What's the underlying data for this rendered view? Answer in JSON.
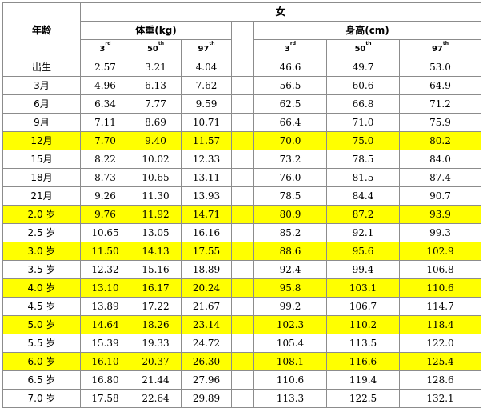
{
  "header": {
    "age_label": "年龄",
    "sex_label": "女",
    "weight_label": "体重(kg)",
    "height_label": "身高(cm)",
    "percentiles": [
      {
        "num": "3",
        "sup": "rd"
      },
      {
        "num": "50",
        "sup": "th"
      },
      {
        "num": "97",
        "sup": "th"
      }
    ]
  },
  "rows": [
    {
      "age": "出生",
      "w": [
        "2.57",
        "3.21",
        "4.04"
      ],
      "h": [
        "46.6",
        "49.7",
        "53.0"
      ],
      "highlight": false
    },
    {
      "age": "3月",
      "w": [
        "4.96",
        "6.13",
        "7.62"
      ],
      "h": [
        "56.5",
        "60.6",
        "64.9"
      ],
      "highlight": false
    },
    {
      "age": "6月",
      "w": [
        "6.34",
        "7.77",
        "9.59"
      ],
      "h": [
        "62.5",
        "66.8",
        "71.2"
      ],
      "highlight": false
    },
    {
      "age": "9月",
      "w": [
        "7.11",
        "8.69",
        "10.71"
      ],
      "h": [
        "66.4",
        "71.0",
        "75.9"
      ],
      "highlight": false
    },
    {
      "age": "12月",
      "w": [
        "7.70",
        "9.40",
        "11.57"
      ],
      "h": [
        "70.0",
        "75.0",
        "80.2"
      ],
      "highlight": true
    },
    {
      "age": "15月",
      "w": [
        "8.22",
        "10.02",
        "12.33"
      ],
      "h": [
        "73.2",
        "78.5",
        "84.0"
      ],
      "highlight": false
    },
    {
      "age": "18月",
      "w": [
        "8.73",
        "10.65",
        "13.11"
      ],
      "h": [
        "76.0",
        "81.5",
        "87.4"
      ],
      "highlight": false
    },
    {
      "age": "21月",
      "w": [
        "9.26",
        "11.30",
        "13.93"
      ],
      "h": [
        "78.5",
        "84.4",
        "90.7"
      ],
      "highlight": false
    },
    {
      "age": "2.0 岁",
      "w": [
        "9.76",
        "11.92",
        "14.71"
      ],
      "h": [
        "80.9",
        "87.2",
        "93.9"
      ],
      "highlight": true
    },
    {
      "age": "2.5 岁",
      "w": [
        "10.65",
        "13.05",
        "16.16"
      ],
      "h": [
        "85.2",
        "92.1",
        "99.3"
      ],
      "highlight": false
    },
    {
      "age": "3.0 岁",
      "w": [
        "11.50",
        "14.13",
        "17.55"
      ],
      "h": [
        "88.6",
        "95.6",
        "102.9"
      ],
      "highlight": true
    },
    {
      "age": "3.5 岁",
      "w": [
        "12.32",
        "15.16",
        "18.89"
      ],
      "h": [
        "92.4",
        "99.4",
        "106.8"
      ],
      "highlight": false
    },
    {
      "age": "4.0 岁",
      "w": [
        "13.10",
        "16.17",
        "20.24"
      ],
      "h": [
        "95.8",
        "103.1",
        "110.6"
      ],
      "highlight": true
    },
    {
      "age": "4.5 岁",
      "w": [
        "13.89",
        "17.22",
        "21.67"
      ],
      "h": [
        "99.2",
        "106.7",
        "114.7"
      ],
      "highlight": false
    },
    {
      "age": "5.0 岁",
      "w": [
        "14.64",
        "18.26",
        "23.14"
      ],
      "h": [
        "102.3",
        "110.2",
        "118.4"
      ],
      "highlight": true
    },
    {
      "age": "5.5 岁",
      "w": [
        "15.39",
        "19.33",
        "24.72"
      ],
      "h": [
        "105.4",
        "113.5",
        "122.0"
      ],
      "highlight": false
    },
    {
      "age": "6.0 岁",
      "w": [
        "16.10",
        "20.37",
        "26.30"
      ],
      "h": [
        "108.1",
        "116.6",
        "125.4"
      ],
      "highlight": true
    },
    {
      "age": "6.5 岁",
      "w": [
        "16.80",
        "21.44",
        "27.96"
      ],
      "h": [
        "110.6",
        "119.4",
        "128.6"
      ],
      "highlight": false
    },
    {
      "age": "7.0 岁",
      "w": [
        "17.58",
        "22.64",
        "29.89"
      ],
      "h": [
        "113.3",
        "122.5",
        "132.1"
      ],
      "highlight": false
    }
  ]
}
